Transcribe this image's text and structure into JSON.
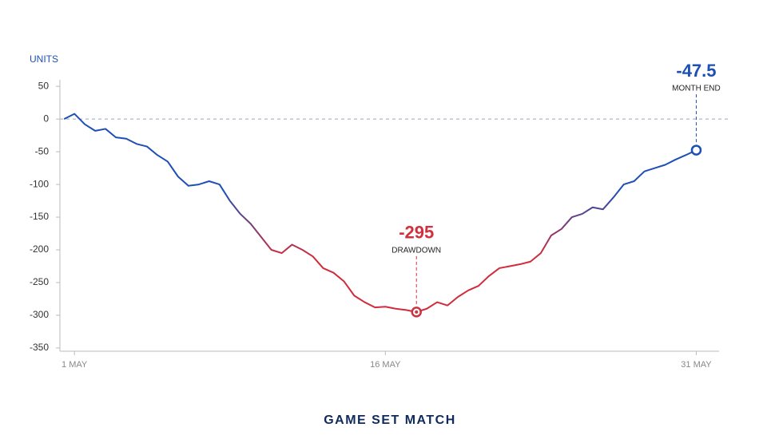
{
  "chart_data": {
    "type": "line",
    "y_label": "UNITS",
    "footer": "GAME SET MATCH",
    "x": [
      0.5,
      1,
      1.5,
      2,
      2.5,
      3,
      3.5,
      4,
      4.5,
      5,
      5.5,
      6,
      6.5,
      7,
      7.5,
      8,
      8.5,
      9,
      9.5,
      10,
      10.5,
      11,
      11.5,
      12,
      12.5,
      13,
      13.5,
      14,
      14.5,
      15,
      15.5,
      16,
      16.5,
      17,
      17.5,
      18,
      18.5,
      19,
      19.5,
      20,
      20.5,
      21,
      21.5,
      22,
      22.5,
      23,
      23.5,
      24,
      24.5,
      25,
      25.5,
      26,
      26.5,
      27,
      27.5,
      28,
      28.5,
      29,
      29.5,
      30,
      30.5,
      31
    ],
    "series": [
      {
        "color": "#1d4fb5",
        "low_color": "#d02c3c",
        "values": [
          0,
          8,
          -8,
          -18,
          -15,
          -28,
          -30,
          -38,
          -42,
          -55,
          -65,
          -88,
          -102,
          -100,
          -95,
          -100,
          -125,
          -145,
          -160,
          -180,
          -200,
          -205,
          -192,
          -200,
          -210,
          -228,
          -235,
          -248,
          -270,
          -280,
          -288,
          -287,
          -290,
          -292,
          -295,
          -290,
          -280,
          -285,
          -272,
          -262,
          -255,
          -240,
          -228,
          -225,
          -222,
          -218,
          -205,
          -178,
          -168,
          -150,
          -145,
          -135,
          -138,
          -120,
          -100,
          -95,
          -80,
          -75,
          -70,
          -62,
          -55,
          -47.5
        ]
      }
    ],
    "xlim": [
      0.3,
      32.1
    ],
    "xticks": [
      {
        "value": 1,
        "label": "1 MAY"
      },
      {
        "value": 16,
        "label": "16 MAY"
      },
      {
        "value": 31,
        "label": "31 MAY"
      }
    ],
    "ylim": [
      -355,
      60
    ],
    "yticks": [
      -350,
      -300,
      -250,
      -200,
      -150,
      -100,
      -50,
      0,
      50
    ],
    "zero_line": true,
    "annotations": [
      {
        "x": 17.5,
        "y": -295,
        "label": "-295",
        "text": "DRAWDOWN",
        "color": "#d0313f"
      },
      {
        "x": 31,
        "y": -47.5,
        "label": "-47.5",
        "text": "MONTH END",
        "color": "#1d4fb5"
      }
    ]
  }
}
